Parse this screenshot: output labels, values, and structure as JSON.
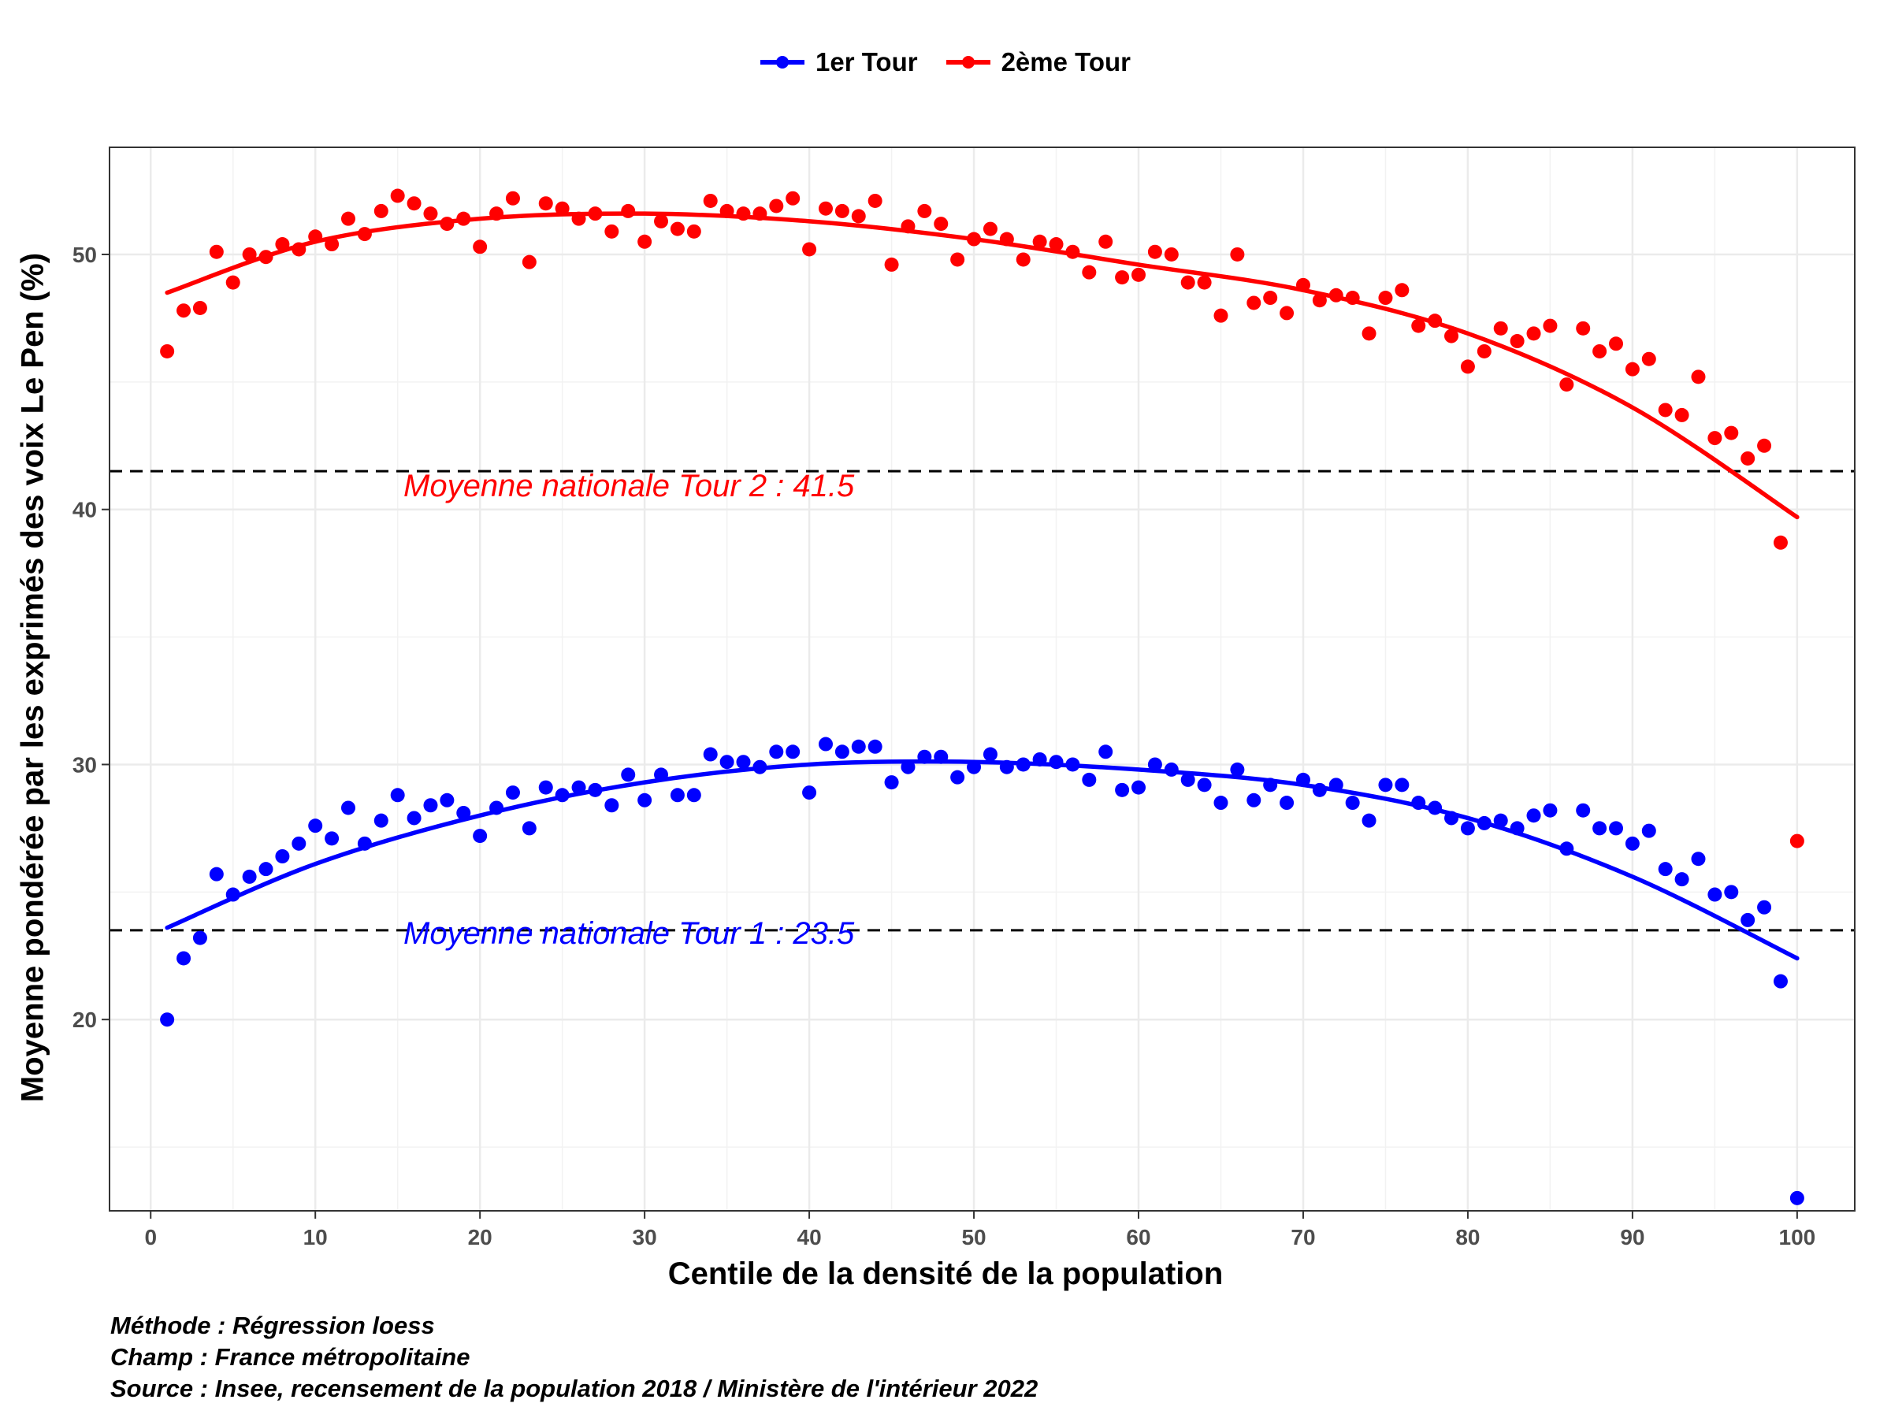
{
  "legend": {
    "items": [
      {
        "label": "1er Tour",
        "color": "#0000FF"
      },
      {
        "label": "2ème Tour",
        "color": "#FF0000"
      }
    ]
  },
  "axes": {
    "xlabel": "Centile de la densité de la population",
    "ylabel": "Moyenne pondérée par les exprimés des voix Le Pen (%)"
  },
  "annotations": {
    "tour2": "Moyenne nationale Tour 2 : 41.5",
    "tour1": "Moyenne nationale Tour 1 : 23.5"
  },
  "caption": {
    "line1": "Méthode : Régression loess",
    "line2": "Champ : France métropolitaine",
    "line3": "Source : Insee, recensement de la population 2018 / Ministère de l'intérieur 2022"
  },
  "chart_data": {
    "type": "scatter",
    "xlim": [
      -2.5,
      103.5
    ],
    "ylim": [
      12.5,
      54.2
    ],
    "xticks": [
      0,
      10,
      20,
      30,
      40,
      50,
      60,
      70,
      80,
      90,
      100
    ],
    "yticks": [
      20,
      30,
      40,
      50
    ],
    "grid": true,
    "legend_position": "top",
    "reference_lines": [
      {
        "y": 41.5,
        "style": "dashed",
        "color": "#000000"
      },
      {
        "y": 23.5,
        "style": "dashed",
        "color": "#000000"
      }
    ],
    "series": [
      {
        "name": "1er Tour",
        "color": "#0000FF",
        "x": [
          1,
          2,
          3,
          4,
          5,
          6,
          7,
          8,
          9,
          10,
          11,
          12,
          13,
          14,
          15,
          16,
          17,
          18,
          19,
          20,
          21,
          22,
          23,
          24,
          25,
          26,
          27,
          28,
          29,
          30,
          31,
          32,
          33,
          34,
          35,
          36,
          37,
          38,
          39,
          40,
          41,
          42,
          43,
          44,
          45,
          46,
          47,
          48,
          49,
          50,
          51,
          52,
          53,
          54,
          55,
          56,
          57,
          58,
          59,
          60,
          61,
          62,
          63,
          64,
          65,
          66,
          67,
          68,
          69,
          70,
          71,
          72,
          73,
          74,
          75,
          76,
          77,
          78,
          79,
          80,
          81,
          82,
          83,
          84,
          85,
          86,
          87,
          88,
          89,
          90,
          91,
          92,
          93,
          94,
          95,
          96,
          97,
          98,
          99,
          100
        ],
        "y": [
          20.0,
          22.4,
          23.2,
          25.7,
          24.9,
          25.6,
          25.9,
          26.4,
          26.9,
          27.6,
          27.1,
          28.3,
          26.9,
          27.8,
          28.8,
          27.9,
          28.4,
          28.6,
          28.1,
          27.2,
          28.3,
          28.9,
          27.5,
          29.1,
          28.8,
          29.1,
          29.0,
          28.4,
          29.6,
          28.6,
          29.6,
          28.8,
          28.8,
          30.4,
          30.1,
          30.1,
          29.9,
          30.5,
          30.5,
          28.9,
          30.8,
          30.5,
          30.7,
          30.7,
          29.3,
          29.9,
          30.3,
          30.3,
          29.5,
          29.9,
          30.4,
          29.9,
          30.0,
          30.2,
          30.1,
          30.0,
          29.4,
          30.5,
          29.0,
          29.1,
          30.0,
          29.8,
          29.4,
          29.2,
          28.5,
          29.8,
          28.6,
          29.2,
          28.5,
          29.4,
          29.0,
          29.2,
          28.5,
          27.8,
          29.2,
          29.2,
          28.5,
          28.3,
          27.9,
          27.5,
          27.7,
          27.8,
          27.5,
          28.0,
          28.2,
          26.7,
          28.2,
          27.5,
          27.5,
          26.9,
          27.4,
          25.9,
          25.5,
          26.3,
          24.9,
          25.0,
          23.9,
          24.4,
          21.5,
          13.0
        ],
        "fit": [
          [
            1,
            23.6
          ],
          [
            10,
            26.1
          ],
          [
            20,
            28.0
          ],
          [
            30,
            29.3
          ],
          [
            40,
            30.0
          ],
          [
            50,
            30.1
          ],
          [
            60,
            29.8
          ],
          [
            70,
            29.2
          ],
          [
            80,
            27.9
          ],
          [
            90,
            25.6
          ],
          [
            100,
            22.4
          ]
        ]
      },
      {
        "name": "2ème Tour",
        "color": "#FF0000",
        "x": [
          1,
          2,
          3,
          4,
          5,
          6,
          7,
          8,
          9,
          10,
          11,
          12,
          13,
          14,
          15,
          16,
          17,
          18,
          19,
          20,
          21,
          22,
          23,
          24,
          25,
          26,
          27,
          28,
          29,
          30,
          31,
          32,
          33,
          34,
          35,
          36,
          37,
          38,
          39,
          40,
          41,
          42,
          43,
          44,
          45,
          46,
          47,
          48,
          49,
          50,
          51,
          52,
          53,
          54,
          55,
          56,
          57,
          58,
          59,
          60,
          61,
          62,
          63,
          64,
          65,
          66,
          67,
          68,
          69,
          70,
          71,
          72,
          73,
          74,
          75,
          76,
          77,
          78,
          79,
          80,
          81,
          82,
          83,
          84,
          85,
          86,
          87,
          88,
          89,
          90,
          91,
          92,
          93,
          94,
          95,
          96,
          97,
          98,
          99,
          100
        ],
        "y": [
          46.2,
          47.8,
          47.9,
          50.1,
          48.9,
          50.0,
          49.9,
          50.4,
          50.2,
          50.7,
          50.4,
          51.4,
          50.8,
          51.7,
          52.3,
          52.0,
          51.6,
          51.2,
          51.4,
          50.3,
          51.6,
          52.2,
          49.7,
          52.0,
          51.8,
          51.4,
          51.6,
          50.9,
          51.7,
          50.5,
          51.3,
          51.0,
          50.9,
          52.1,
          51.7,
          51.6,
          51.6,
          51.9,
          52.2,
          50.2,
          51.8,
          51.7,
          51.5,
          52.1,
          49.6,
          51.1,
          51.7,
          51.2,
          49.8,
          50.6,
          51.0,
          50.6,
          49.8,
          50.5,
          50.4,
          50.1,
          49.3,
          50.5,
          49.1,
          49.2,
          50.1,
          50.0,
          48.9,
          48.9,
          47.6,
          50.0,
          48.1,
          48.3,
          47.7,
          48.8,
          48.2,
          48.4,
          48.3,
          46.9,
          48.3,
          48.6,
          47.2,
          47.4,
          46.8,
          45.6,
          46.2,
          47.1,
          46.6,
          46.9,
          47.2,
          44.9,
          47.1,
          46.2,
          46.5,
          45.5,
          45.9,
          43.9,
          43.7,
          45.2,
          42.8,
          43.0,
          42.0,
          42.5,
          38.7,
          27.0
        ],
        "fit": [
          [
            1,
            48.5
          ],
          [
            10,
            50.5
          ],
          [
            20,
            51.4
          ],
          [
            30,
            51.6
          ],
          [
            40,
            51.3
          ],
          [
            50,
            50.6
          ],
          [
            60,
            49.6
          ],
          [
            70,
            48.6
          ],
          [
            80,
            46.9
          ],
          [
            90,
            44.0
          ],
          [
            100,
            39.7
          ]
        ]
      }
    ]
  }
}
